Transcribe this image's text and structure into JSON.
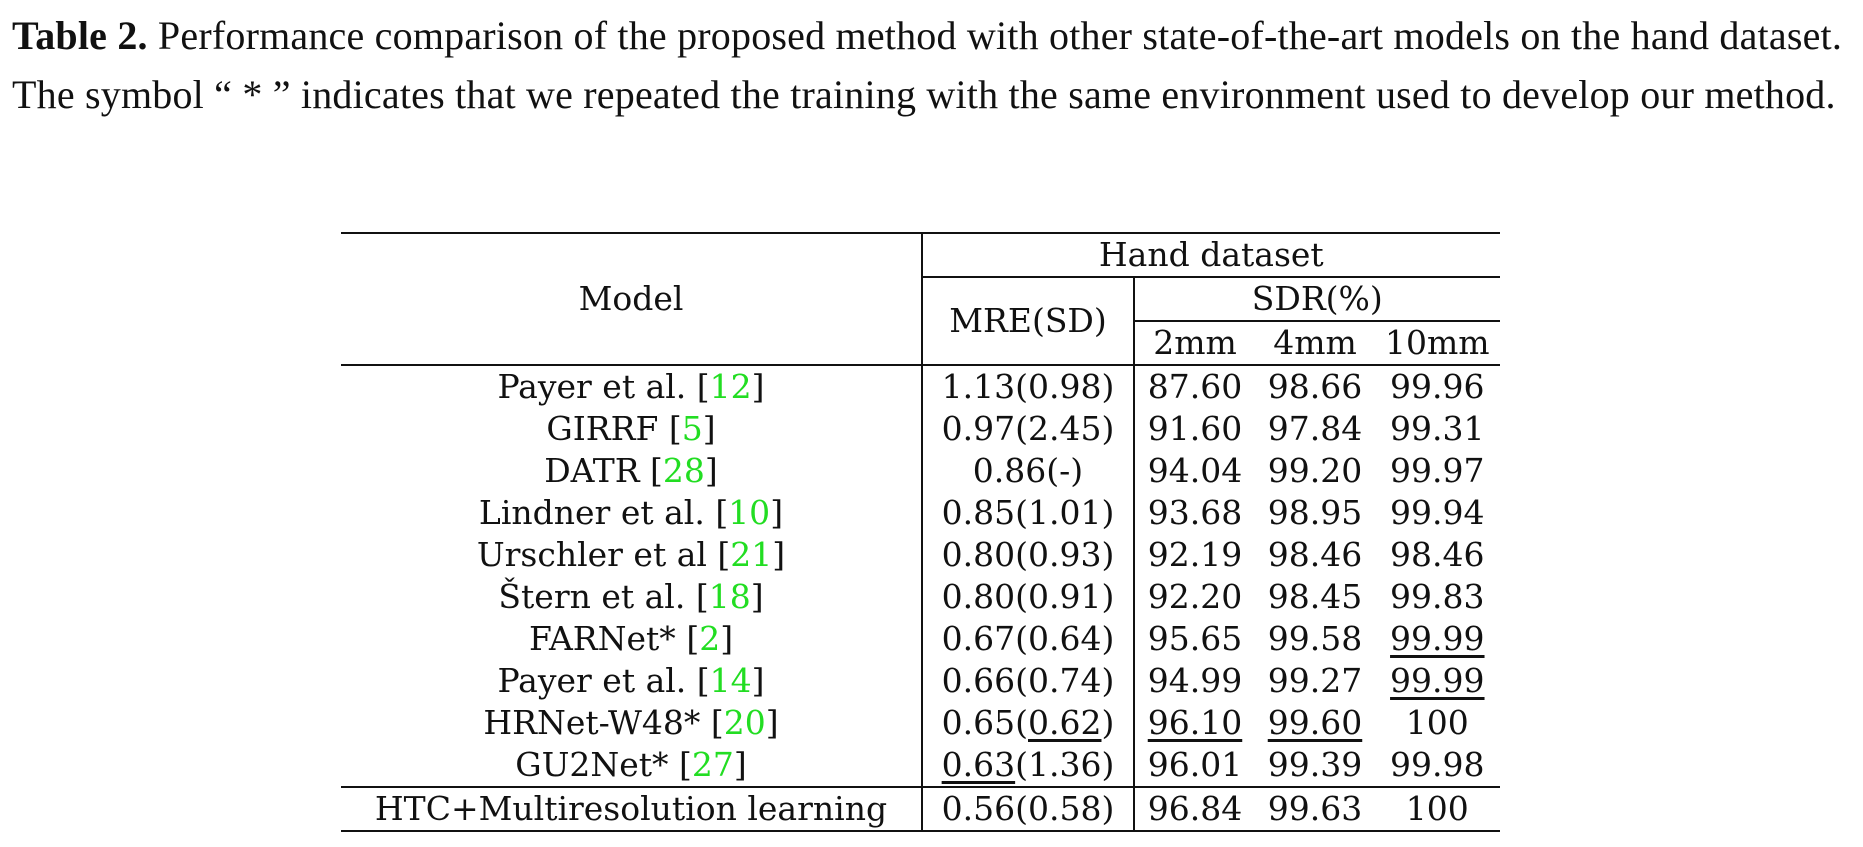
{
  "caption": {
    "label": "Table 2.",
    "text": " Performance comparison of the proposed method with other state-of-the-art models on the hand dataset. The symbol “ * ” indicates that we repeated the training with the same environment used to develop our method."
  },
  "table": {
    "header": {
      "model": "Model",
      "group": "Hand dataset",
      "mre": "MRE(SD)",
      "sdr": "SDR(%)",
      "sdr_2mm": "2mm",
      "sdr_4mm": "4mm",
      "sdr_10mm": "10mm"
    },
    "rows": [
      {
        "name": "Payer et al. ",
        "cite": "12",
        "mre": "1.13(0.98)",
        "s2": "87.60",
        "s4": "98.66",
        "s10": "99.96"
      },
      {
        "name": "GIRRF ",
        "cite": "5",
        "mre": "0.97(2.45)",
        "s2": "91.60",
        "s4": "97.84",
        "s10": "99.31"
      },
      {
        "name": "DATR ",
        "cite": "28",
        "mre": "0.86(-)",
        "s2": "94.04",
        "s4": "99.20",
        "s10": "99.97"
      },
      {
        "name": "Lindner et al. ",
        "cite": "10",
        "mre": "0.85(1.01)",
        "s2": "93.68",
        "s4": "98.95",
        "s10": "99.94"
      },
      {
        "name": "Urschler et al ",
        "cite": "21",
        "mre": "0.80(0.93)",
        "s2": "92.19",
        "s4": "98.46",
        "s10": "98.46"
      },
      {
        "name": "Štern et al. ",
        "cite": "18",
        "mre": "0.80(0.91)",
        "s2": "92.20",
        "s4": "98.45",
        "s10": "99.83"
      },
      {
        "name": "FARNet* ",
        "cite": "2",
        "mre": "0.67(0.64)",
        "s2": "95.65",
        "s4": "99.58",
        "s10": "99.99"
      },
      {
        "name": "Payer et al. ",
        "cite": "14",
        "mre": "0.66(0.74)",
        "s2": "94.99",
        "s4": "99.27",
        "s10": "99.99"
      },
      {
        "name": "HRNet-W48* ",
        "cite": "20",
        "mre_a": "0.65(",
        "mre_b": "0.62",
        "mre_c": ")",
        "s2": "96.10",
        "s4": "99.60",
        "s10": "100"
      },
      {
        "name": "GU2Net* ",
        "cite": "27",
        "mre_a": "0.63",
        "mre_b": "(1.36)",
        "s2": "96.01",
        "s4": "99.39",
        "s10": "99.98"
      }
    ],
    "final": {
      "name": "HTC+Multiresolution learning",
      "mre": "0.56(0.58)",
      "s2": "96.84",
      "s4": "99.63",
      "s10": "100"
    },
    "brackets": {
      "open": "[",
      "close": "]"
    }
  }
}
